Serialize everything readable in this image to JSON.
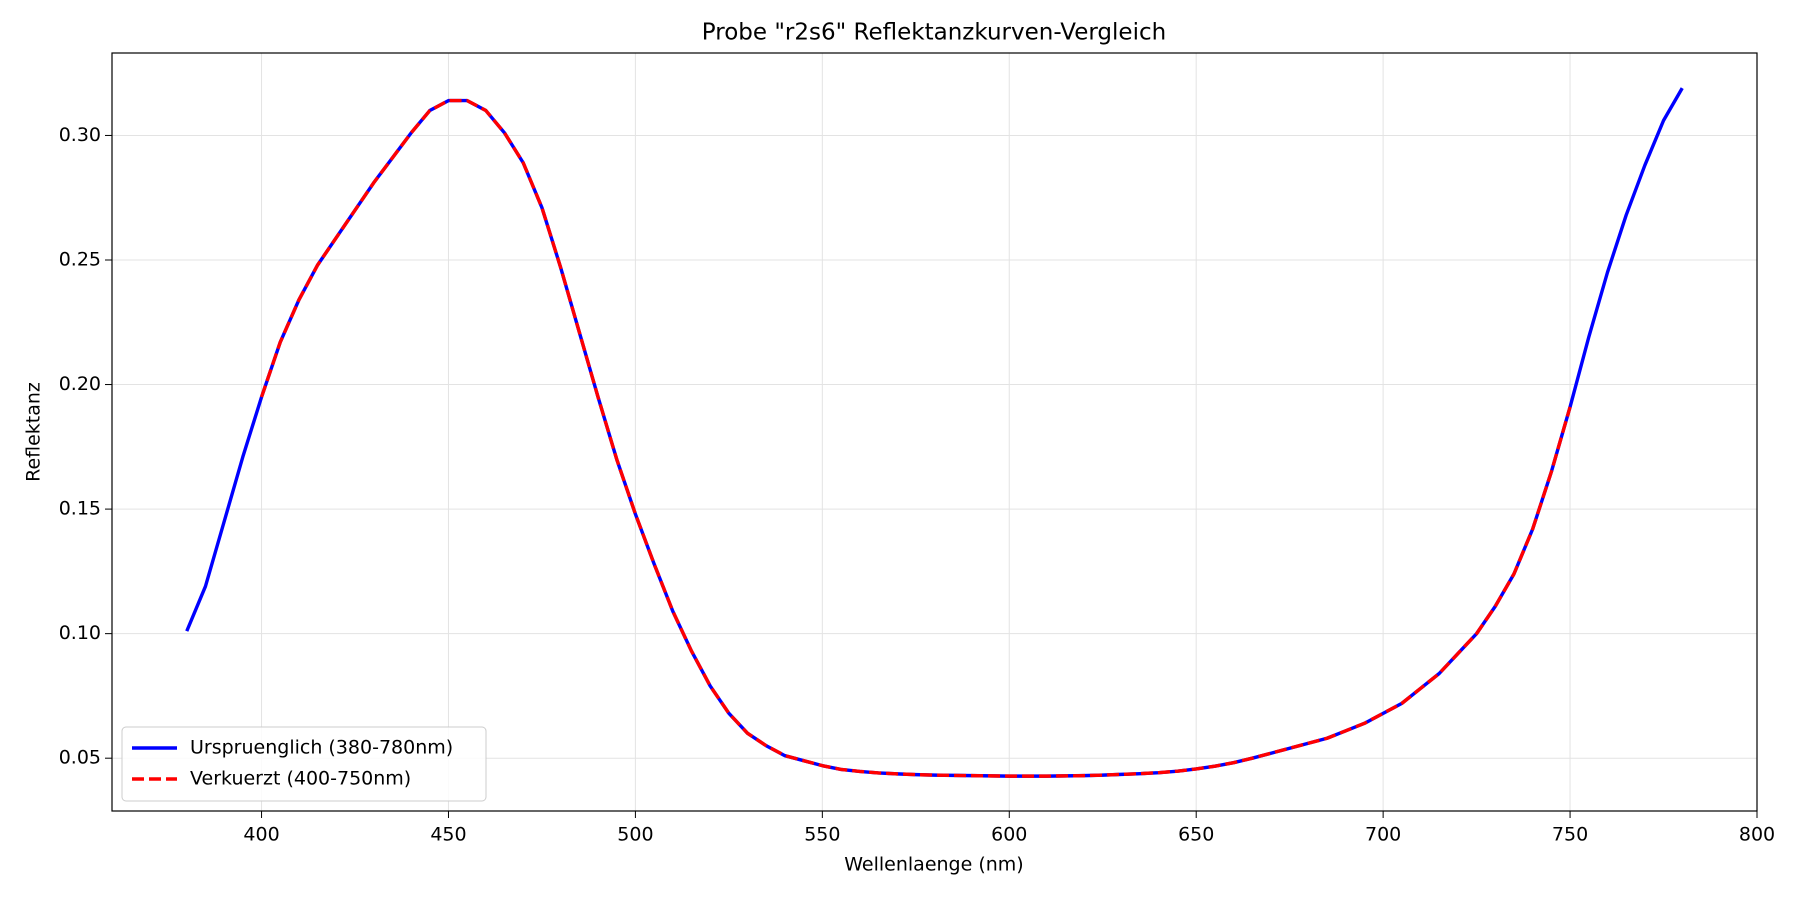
{
  "chart_data": {
    "type": "line",
    "title": "Probe \"r2s6\" Reflektanzkurven-Vergleich",
    "xlabel": "Wellenlaenge (nm)",
    "ylabel": "Reflektanz",
    "xlim": [
      360,
      800
    ],
    "ylim": [
      0.0288,
      0.3331
    ],
    "xticks": [
      400,
      450,
      500,
      550,
      600,
      650,
      700,
      750,
      800
    ],
    "yticks": [
      0.05,
      {
        "value": 0.1,
        "label": "0.10"
      },
      0.15,
      {
        "value": 0.2,
        "label": "0.20"
      },
      0.25,
      {
        "value": 0.3,
        "label": "0.30"
      }
    ],
    "grid": true,
    "legend": "lower left",
    "series": [
      {
        "name": "Urspruenglich (380-780nm)",
        "color": "#0000ff",
        "style": "solid",
        "x": [
          380,
          385,
          390,
          395,
          400,
          405,
          410,
          415,
          420,
          425,
          430,
          435,
          440,
          445,
          450,
          455,
          460,
          465,
          470,
          475,
          480,
          485,
          490,
          495,
          500,
          505,
          510,
          515,
          520,
          525,
          530,
          535,
          540,
          545,
          550,
          555,
          560,
          565,
          570,
          575,
          580,
          585,
          590,
          595,
          600,
          605,
          610,
          615,
          620,
          625,
          630,
          635,
          640,
          645,
          650,
          655,
          660,
          665,
          670,
          675,
          680,
          685,
          690,
          695,
          700,
          705,
          710,
          715,
          720,
          725,
          730,
          735,
          740,
          745,
          750,
          755,
          760,
          765,
          770,
          775,
          780
        ],
        "values": [
          0.101,
          0.119,
          0.145,
          0.171,
          0.195,
          0.217,
          0.234,
          0.248,
          0.259,
          0.27,
          0.281,
          0.291,
          0.301,
          0.31,
          0.314,
          0.314,
          0.31,
          0.301,
          0.289,
          0.271,
          0.247,
          0.221,
          0.195,
          0.17,
          0.148,
          0.128,
          0.109,
          0.093,
          0.079,
          0.068,
          0.06,
          0.055,
          0.051,
          0.049,
          0.047,
          0.0455,
          0.0447,
          0.0441,
          0.0437,
          0.0434,
          0.0432,
          0.0431,
          0.043,
          0.0429,
          0.0428,
          0.0428,
          0.0428,
          0.0429,
          0.043,
          0.0432,
          0.0435,
          0.0438,
          0.0442,
          0.0448,
          0.0457,
          0.0468,
          0.0482,
          0.05,
          0.052,
          0.054,
          0.056,
          0.058,
          0.061,
          0.064,
          0.068,
          0.072,
          0.078,
          0.084,
          0.092,
          0.1,
          0.111,
          0.124,
          0.142,
          0.165,
          0.191,
          0.219,
          0.245,
          0.268,
          0.288,
          0.306,
          0.319
        ]
      },
      {
        "name": "Verkuerzt (400-750nm)",
        "color": "#ff0000",
        "style": "dashed",
        "x": [
          400,
          405,
          410,
          415,
          420,
          425,
          430,
          435,
          440,
          445,
          450,
          455,
          460,
          465,
          470,
          475,
          480,
          485,
          490,
          495,
          500,
          505,
          510,
          515,
          520,
          525,
          530,
          535,
          540,
          545,
          550,
          555,
          560,
          565,
          570,
          575,
          580,
          585,
          590,
          595,
          600,
          605,
          610,
          615,
          620,
          625,
          630,
          635,
          640,
          645,
          650,
          655,
          660,
          665,
          670,
          675,
          680,
          685,
          690,
          695,
          700,
          705,
          710,
          715,
          720,
          725,
          730,
          735,
          740,
          745,
          750
        ],
        "values": [
          0.195,
          0.217,
          0.234,
          0.248,
          0.259,
          0.27,
          0.281,
          0.291,
          0.301,
          0.31,
          0.314,
          0.314,
          0.31,
          0.301,
          0.289,
          0.271,
          0.247,
          0.221,
          0.195,
          0.17,
          0.148,
          0.128,
          0.109,
          0.093,
          0.079,
          0.068,
          0.06,
          0.055,
          0.051,
          0.049,
          0.047,
          0.0455,
          0.0447,
          0.0441,
          0.0437,
          0.0434,
          0.0432,
          0.0431,
          0.043,
          0.0429,
          0.0428,
          0.0428,
          0.0428,
          0.0429,
          0.043,
          0.0432,
          0.0435,
          0.0438,
          0.0442,
          0.0448,
          0.0457,
          0.0468,
          0.0482,
          0.05,
          0.052,
          0.054,
          0.056,
          0.058,
          0.061,
          0.064,
          0.068,
          0.072,
          0.078,
          0.084,
          0.092,
          0.1,
          0.111,
          0.124,
          0.142,
          0.165,
          0.191
        ]
      }
    ]
  }
}
